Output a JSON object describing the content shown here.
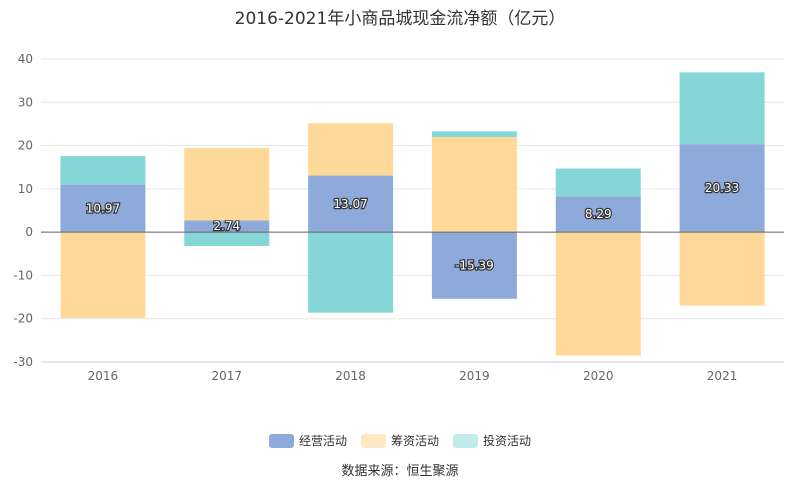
{
  "chart_data": {
    "type": "bar",
    "stacked": true,
    "title": "2016-2021年小商品城现金流净额（亿元）",
    "categories": [
      "2016",
      "2017",
      "2018",
      "2019",
      "2020",
      "2021"
    ],
    "series": [
      {
        "name": "经营活动",
        "color": "#8eaadb",
        "values": [
          10.97,
          2.74,
          13.07,
          -15.39,
          8.29,
          20.33
        ],
        "labeled": true
      },
      {
        "name": "筹资活动",
        "color": "#ffd99a",
        "values": [
          -19.8,
          16.7,
          12.1,
          22.0,
          -28.5,
          -17.0
        ],
        "labeled": false
      },
      {
        "name": "投资活动",
        "color": "#86d6d8",
        "values": [
          6.6,
          -3.2,
          -18.6,
          1.3,
          6.4,
          16.6
        ],
        "labeled": false
      }
    ],
    "ylim": [
      -30,
      40
    ],
    "yticks": [
      -30,
      -20,
      -10,
      0,
      10,
      20,
      30,
      40
    ],
    "grid": true,
    "legend_position": "bottom"
  },
  "legend": {
    "items": [
      "经营活动",
      "筹资活动",
      "投资活动"
    ]
  },
  "source": "数据来源：恒生聚源"
}
